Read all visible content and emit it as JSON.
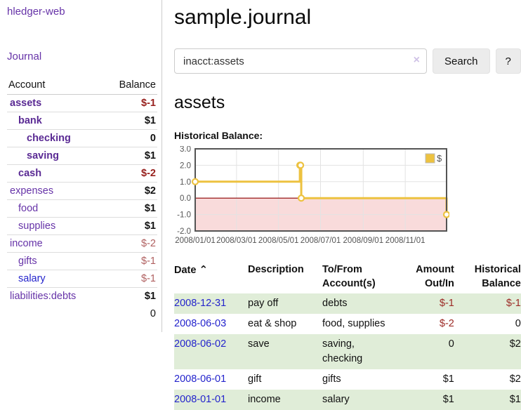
{
  "sidebar": {
    "app_title": "hledger-web",
    "nav": {
      "journal_label": "Journal"
    },
    "accounts_table": {
      "headers": {
        "account": "Account",
        "balance": "Balance"
      },
      "rows": [
        {
          "label": "assets",
          "level": 1,
          "bold": true,
          "link_style": "purple",
          "balance": "$-1",
          "negative": true,
          "bal_bold": true
        },
        {
          "label": "bank",
          "level": 2,
          "bold": true,
          "link_style": "purple",
          "balance": "$1",
          "negative": false,
          "bal_bold": true
        },
        {
          "label": "checking",
          "level": 3,
          "bold": true,
          "link_style": "purple",
          "balance": "0",
          "negative": false,
          "bal_bold": true
        },
        {
          "label": "saving",
          "level": 3,
          "bold": true,
          "link_style": "purple",
          "balance": "$1",
          "negative": false,
          "bal_bold": true
        },
        {
          "label": "cash",
          "level": 2,
          "bold": true,
          "link_style": "purple",
          "balance": "$-2",
          "negative": true,
          "bal_bold": true
        },
        {
          "label": "expenses",
          "level": 1,
          "bold": false,
          "link_style": "purple",
          "balance": "$2",
          "negative": false,
          "bal_bold": true
        },
        {
          "label": "food",
          "level": 2,
          "bold": false,
          "link_style": "purple",
          "balance": "$1",
          "negative": false,
          "bal_bold": true
        },
        {
          "label": "supplies",
          "level": 2,
          "bold": false,
          "link_style": "purple",
          "balance": "$1",
          "negative": false,
          "bal_bold": true
        },
        {
          "label": "income",
          "level": 1,
          "bold": false,
          "link_style": "purple",
          "balance": "$-2",
          "negative": true,
          "bal_bold": false
        },
        {
          "label": "gifts",
          "level": 2,
          "bold": false,
          "link_style": "purple",
          "balance": "$-1",
          "negative": true,
          "bal_bold": false
        },
        {
          "label": "salary",
          "level": 2,
          "bold": false,
          "link_style": "blue",
          "balance": "$-1",
          "negative": true,
          "bal_bold": false
        },
        {
          "label": "liabilities:debts",
          "level": 1,
          "bold": false,
          "link_style": "purple",
          "balance": "$1",
          "negative": false,
          "bal_bold": true
        }
      ],
      "total": "0"
    }
  },
  "header": {
    "title": "sample.journal"
  },
  "search": {
    "query": "inacct:assets",
    "clear_icon": "×",
    "search_label": "Search",
    "help_label": "?"
  },
  "account_page": {
    "title": "assets",
    "chart_label": "Historical Balance:"
  },
  "chart_data": {
    "type": "line",
    "step": true,
    "title": "Historical Balance:",
    "series": [
      {
        "name": "$",
        "color": "#edc240",
        "points": [
          [
            "2008/01/01",
            1.0
          ],
          [
            "2008/06/01",
            2.0
          ],
          [
            "2008/06/02",
            2.0
          ],
          [
            "2008/06/03",
            0.0
          ],
          [
            "2008/12/31",
            -1.0
          ]
        ]
      }
    ],
    "x_range": [
      "2008/01/01",
      "2008/12/31"
    ],
    "x_ticks": [
      "2008/01/01",
      "2008/03/01",
      "2008/05/01",
      "2008/07/01",
      "2008/09/01",
      "2008/11/01"
    ],
    "y_ticks": [
      3.0,
      2.0,
      1.0,
      0.0,
      -1.0,
      -2.0
    ],
    "ylim": [
      -2.0,
      3.0
    ],
    "grid": true,
    "legend_position": "top-right",
    "negative_region_fill": "#f9dbdb",
    "zero_line_color": "#8b0000",
    "grid_color": "#e3e3e3",
    "border_color": "#545454",
    "tick_label_color": "#545454"
  },
  "table": {
    "sort_icon": "⌃",
    "headers": [
      [
        "Date",
        ""
      ],
      [
        "Description",
        ""
      ],
      [
        "To/From",
        "Account(s)"
      ],
      [
        "Amount",
        "Out/In"
      ],
      [
        "Historical",
        "Balance"
      ]
    ],
    "rows": [
      {
        "date": "2008-12-31",
        "description": "pay off",
        "accounts_lines": [
          "debts"
        ],
        "amount": "$-1",
        "amount_negative": true,
        "balance": "$-1",
        "balance_negative": true
      },
      {
        "date": "2008-06-03",
        "description": "eat & shop",
        "accounts_lines": [
          "food, supplies"
        ],
        "amount": "$-2",
        "amount_negative": true,
        "balance": "0",
        "balance_negative": false
      },
      {
        "date": "2008-06-02",
        "description": "save",
        "accounts_lines": [
          "saving,",
          "checking"
        ],
        "amount": "0",
        "amount_negative": false,
        "balance": "$2",
        "balance_negative": false
      },
      {
        "date": "2008-06-01",
        "description": "gift",
        "accounts_lines": [
          "gifts"
        ],
        "amount": "$1",
        "amount_negative": false,
        "balance": "$2",
        "balance_negative": false
      },
      {
        "date": "2008-01-01",
        "description": "income",
        "accounts_lines": [
          "salary"
        ],
        "amount": "$1",
        "amount_negative": false,
        "balance": "$1",
        "balance_negative": false
      }
    ]
  },
  "colors": {
    "link_purple": "#6633a8",
    "link_purple_bold": "#5a2a94",
    "link_blue": "#2424cc",
    "negative_strong": "#97201d",
    "negative_muted": "#b06060",
    "table_negative": "#9c2a25",
    "row_stripe_green": "#e0edd8",
    "chart_line_gold": "#edc240",
    "chart_negative_fill": "#f9dbdb",
    "chart_zero_line": "#8b0000",
    "button_bg": "#ececec"
  }
}
